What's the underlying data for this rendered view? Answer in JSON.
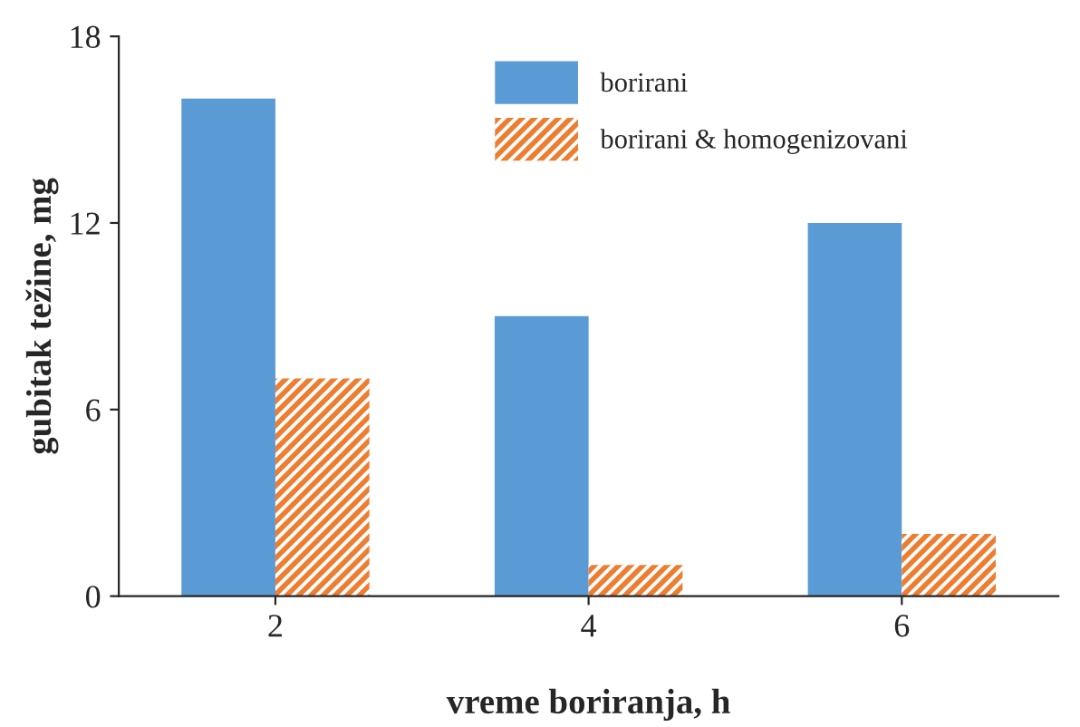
{
  "chart_data": {
    "type": "bar",
    "xlabel": "vreme boriranja, h",
    "ylabel": "gubitak težine, mg",
    "categories": [
      "2",
      "4",
      "6"
    ],
    "series": [
      {
        "name": "borirani",
        "color": "#5b9bd5",
        "values": [
          16,
          9,
          12
        ]
      },
      {
        "name": "borirani & homogenizovani",
        "color": "#ed7d31",
        "values": [
          7,
          1,
          2
        ]
      }
    ],
    "ylim": [
      0,
      18
    ],
    "yticks": [
      0,
      6,
      12,
      18
    ],
    "grid": false,
    "legend": "top"
  }
}
